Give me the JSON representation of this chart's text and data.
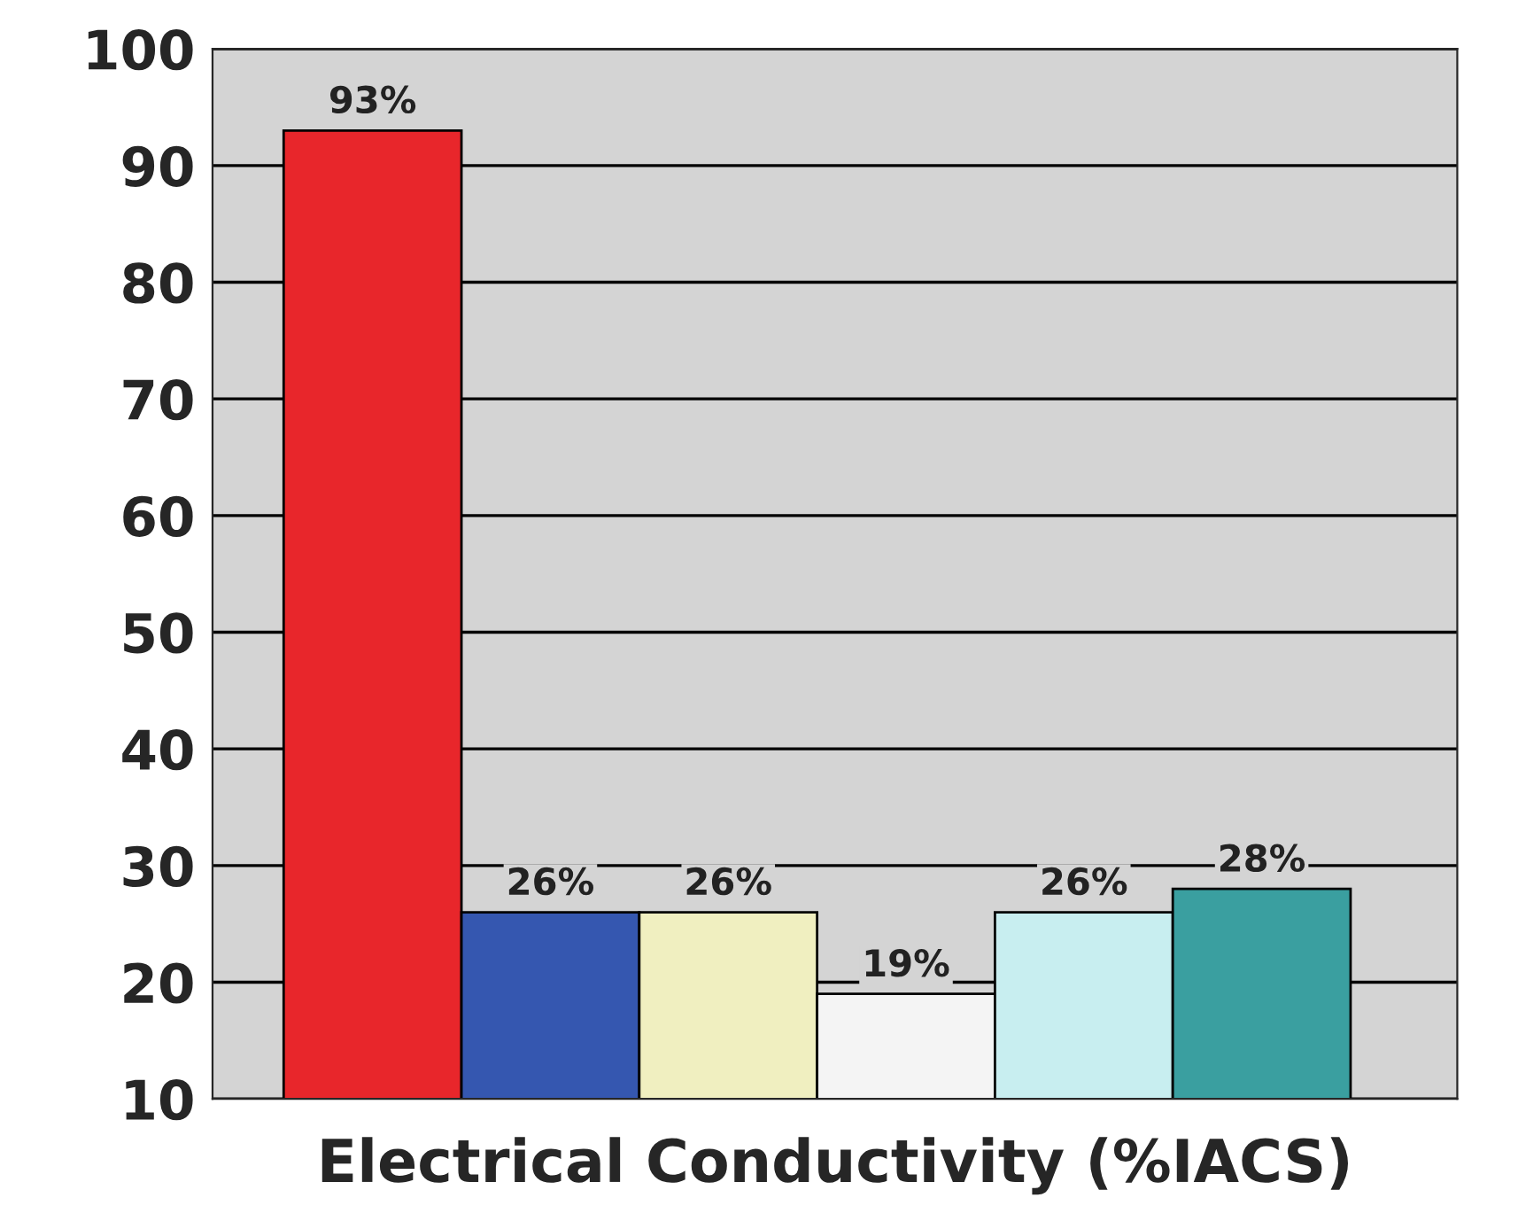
{
  "chart_data": {
    "type": "bar",
    "xlabel": "Electrical Conductivity (%IACS)",
    "categories": [
      null,
      null,
      null,
      null,
      null,
      null
    ],
    "values": [
      93,
      26,
      26,
      19,
      26,
      28
    ],
    "colors": [
      "#e8262b",
      "#3557b0",
      "#f0efc0",
      "#f4f4f4",
      "#c8eef0",
      "#3a9fa0"
    ],
    "value_labels": [
      "93%",
      "26%",
      "26%",
      "19%",
      "26%",
      "28%"
    ],
    "ylim": [
      10,
      100
    ],
    "yticks": [
      10,
      20,
      30,
      40,
      50,
      60,
      70,
      80,
      90,
      100
    ],
    "grid": "y"
  }
}
